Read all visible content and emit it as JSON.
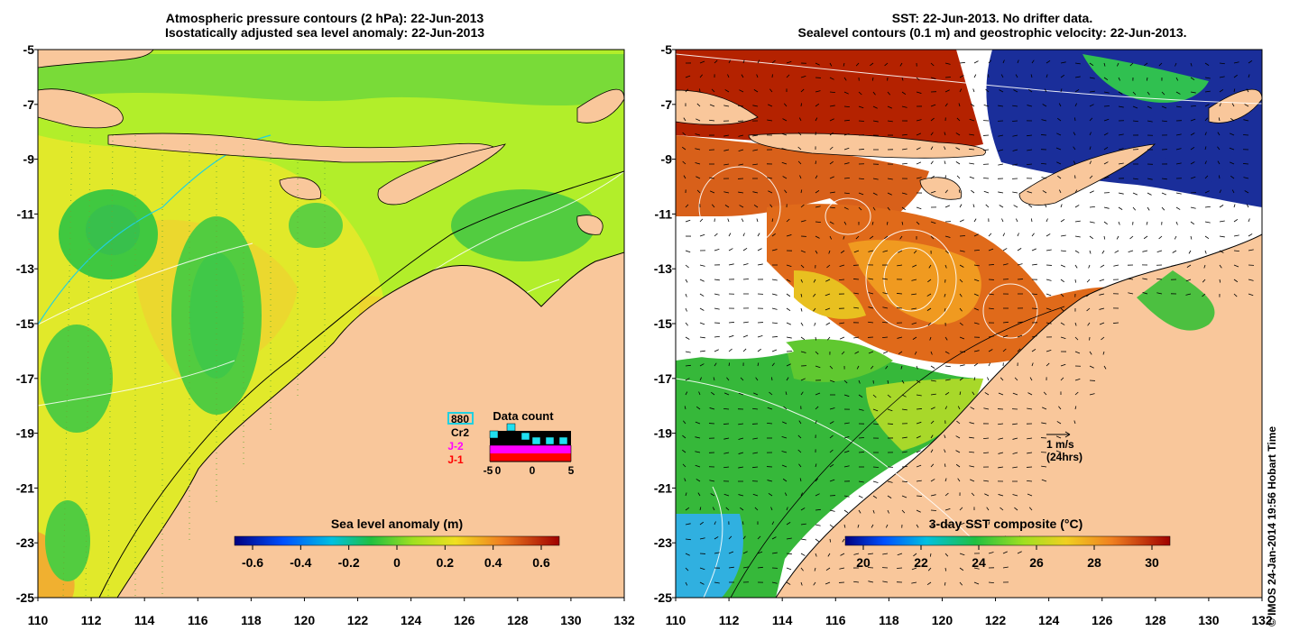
{
  "left_panel": {
    "title_line1": "Atmospheric pressure contours (2 hPa): 22-Jun-2013",
    "title_line2": "Isostatically adjusted sea level anomaly: 22-Jun-2013",
    "colorbar_title": "Sea level anomaly (m)",
    "colorbar_ticks": [
      "-0.6",
      "-0.4",
      "-0.2",
      "0",
      "0.2",
      "0.4",
      "0.6"
    ],
    "legend": {
      "title": "Data count",
      "entries": [
        {
          "label": "880",
          "color": "#000000"
        },
        {
          "label": "Cr2",
          "color": "#000000"
        },
        {
          "label": "J-2",
          "color": "#ff00ff"
        },
        {
          "label": "J-1",
          "color": "#ff0000"
        }
      ],
      "axis_ticks": [
        "-5",
        "0",
        "5"
      ],
      "axis_extra": "0"
    }
  },
  "right_panel": {
    "title_line1": "SST: 22-Jun-2013. No drifter data.",
    "title_line2": "Sealevel contours (0.1 m) and geostrophic velocity: 22-Jun-2013.",
    "colorbar_title": "3-day SST composite (°C)",
    "colorbar_ticks": [
      "20",
      "22",
      "24",
      "26",
      "28",
      "30"
    ],
    "velocity_label1": "1 m/s",
    "velocity_label2": "(24hrs)"
  },
  "axes": {
    "y_ticks": [
      "-5",
      "-7",
      "-9",
      "-11",
      "-13",
      "-15",
      "-17",
      "-19",
      "-21",
      "-23",
      "-25"
    ],
    "x_ticks": [
      "110",
      "112",
      "114",
      "116",
      "118",
      "120",
      "122",
      "124",
      "126",
      "128",
      "130",
      "132"
    ]
  },
  "copyright": "© IMOS 24-Jan-2014 19:56 Hobart Time",
  "colors": {
    "land": "#f9c79b",
    "sla_background": "#b2ee2a",
    "sla_low": "#43c83c",
    "sla_high": "#f0c62a"
  }
}
